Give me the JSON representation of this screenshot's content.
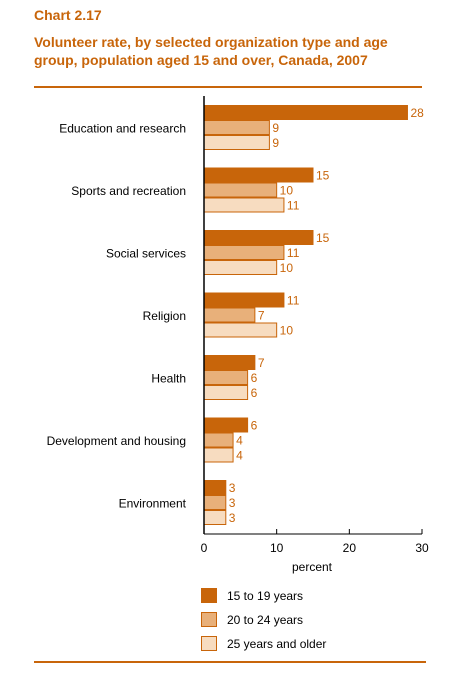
{
  "header": {
    "chart_number": "Chart 2.17",
    "title": "Volunteer rate, by selected organization type and age group, population aged 15 and over, Canada, 2007"
  },
  "colors": {
    "accent": "#c8650a",
    "series": [
      "#c8650a",
      "#e8b07a",
      "#f7dcc0"
    ],
    "bar_stroke": "#c8650a",
    "axis": "#000000",
    "label": "#000000"
  },
  "chart_data": {
    "type": "bar",
    "orientation": "horizontal",
    "categories": [
      "Education and research",
      "Sports and recreation",
      "Social services",
      "Religion",
      "Health",
      "Development and housing",
      "Environment"
    ],
    "series": [
      {
        "name": "15 to 19 years",
        "values": [
          28,
          15,
          15,
          11,
          7,
          6,
          3
        ]
      },
      {
        "name": "20 to 24 years",
        "values": [
          9,
          10,
          11,
          7,
          6,
          4,
          3
        ]
      },
      {
        "name": "25 years and older",
        "values": [
          9,
          11,
          10,
          10,
          6,
          4,
          3
        ]
      }
    ],
    "xlabel": "percent",
    "xlim": [
      0,
      30
    ],
    "xticks": [
      0,
      10,
      20,
      30
    ],
    "data_labels": true,
    "grid": false,
    "legend_position": "bottom-left"
  }
}
